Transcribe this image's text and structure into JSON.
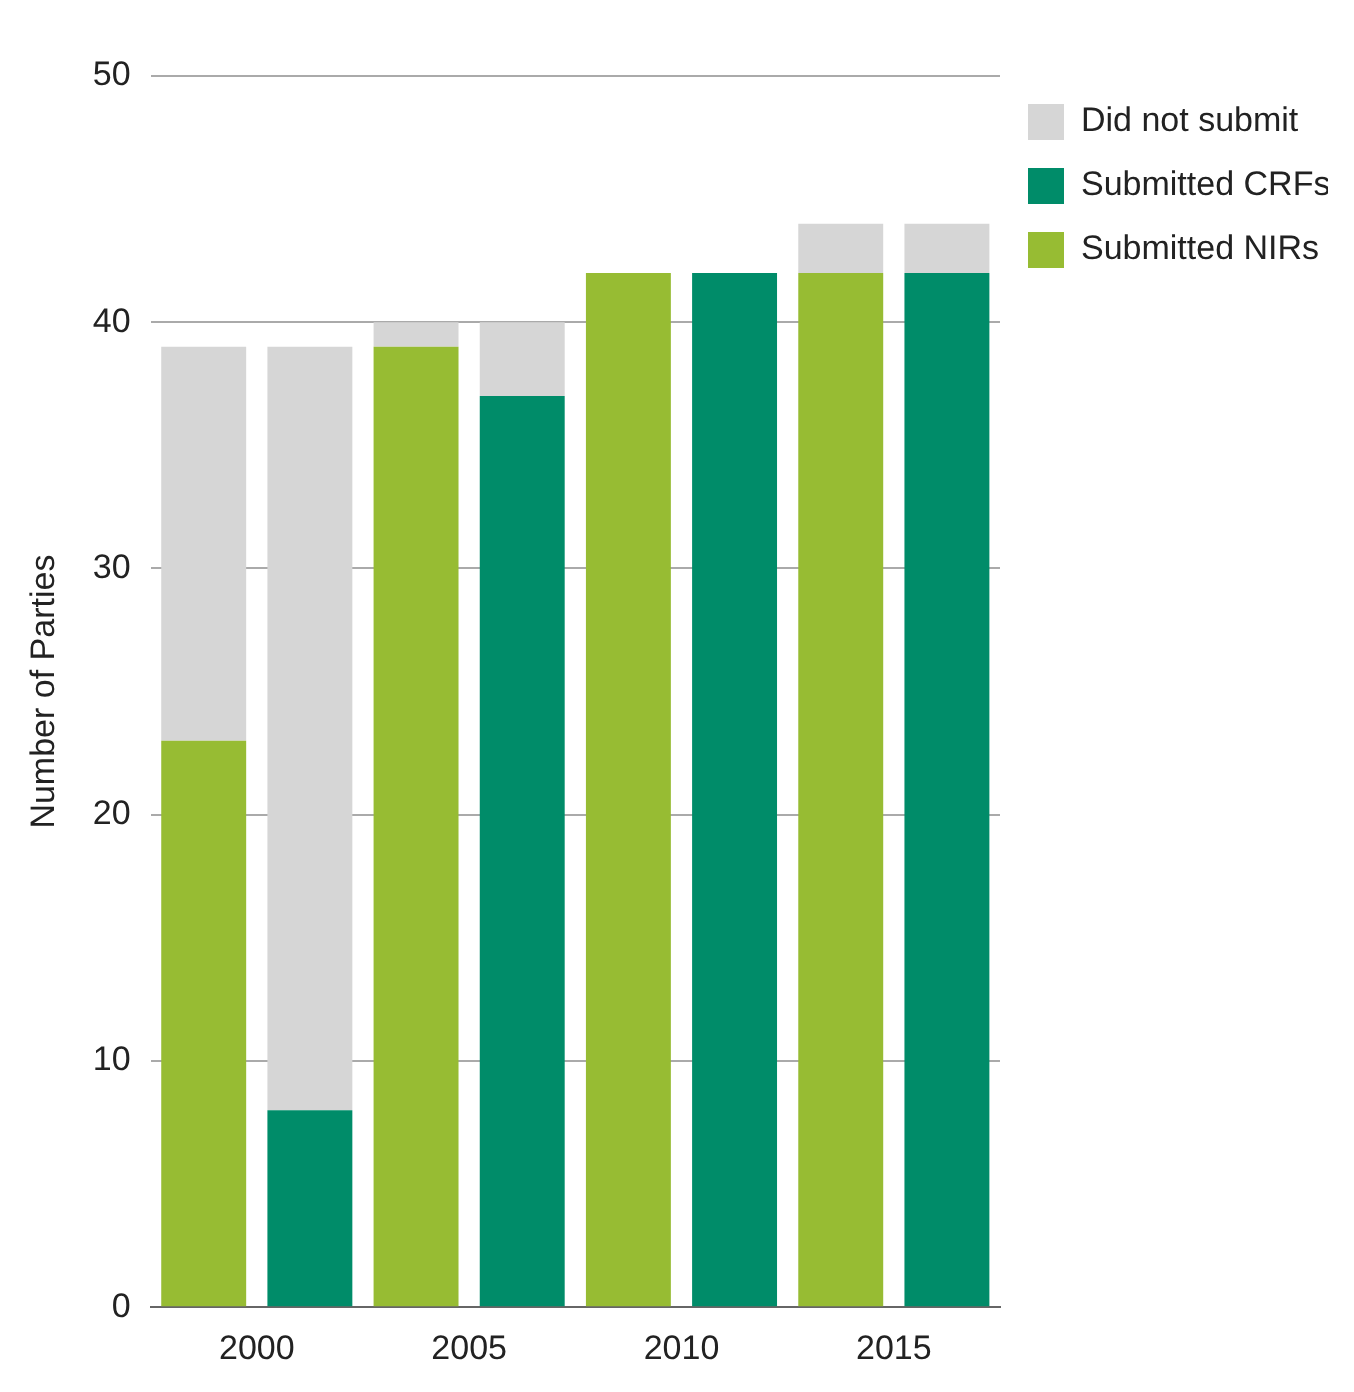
{
  "chart_data": {
    "type": "bar",
    "stacked": true,
    "categories": [
      "2000",
      null,
      "2005",
      null,
      "2010",
      null,
      "2015",
      null
    ],
    "series": [
      {
        "name": "Submitted NIRs",
        "color": "#97bc33",
        "values": [
          23,
          null,
          39,
          null,
          42,
          null,
          42,
          null
        ]
      },
      {
        "name": "Submitted CRFs",
        "color": "#008c69",
        "values": [
          null,
          8,
          null,
          37,
          null,
          42,
          null,
          42
        ]
      },
      {
        "name": "Did not submit",
        "color": "#d6d6d6",
        "values": [
          16,
          31,
          1,
          3,
          0,
          0,
          2,
          2
        ]
      }
    ],
    "ylabel": "Number of Parties",
    "ylim": [
      0,
      50
    ],
    "yticks": [
      0,
      10,
      20,
      30,
      40,
      50
    ],
    "grid": "y",
    "legend": "top right"
  }
}
